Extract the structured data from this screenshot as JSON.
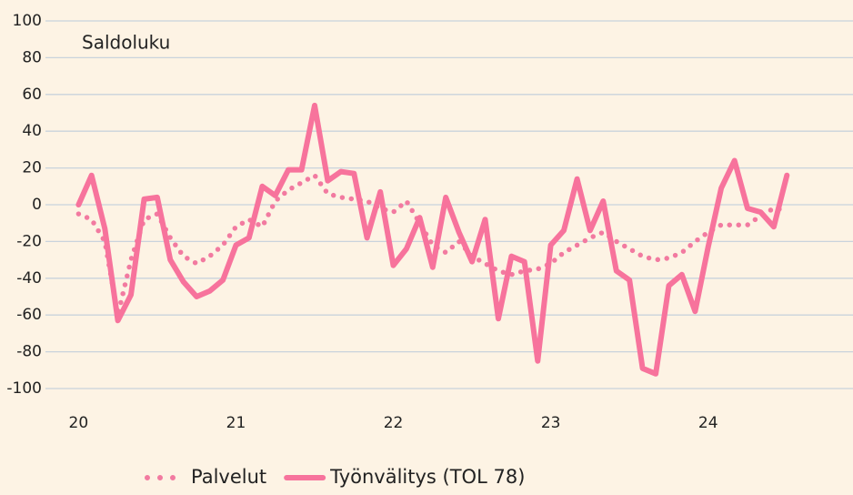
{
  "chart_data": {
    "type": "line",
    "subtitle": "Saldoluku",
    "x": [
      20,
      20.083,
      20.167,
      20.25,
      20.333,
      20.417,
      20.5,
      20.583,
      20.667,
      20.75,
      20.833,
      20.917,
      21,
      21.083,
      21.167,
      21.25,
      21.333,
      21.417,
      21.5,
      21.583,
      21.667,
      21.75,
      21.833,
      21.917,
      22,
      22.083,
      22.167,
      22.25,
      22.333,
      22.417,
      22.5,
      22.583,
      22.667,
      22.75,
      22.833,
      22.917,
      23,
      23.083,
      23.167,
      23.25,
      23.333,
      23.417,
      23.5,
      23.583,
      23.667,
      23.75,
      23.833,
      23.917,
      24,
      24.083,
      24.167,
      24.25,
      24.333,
      24.417,
      24.5
    ],
    "series": [
      {
        "name": "Palvelut",
        "color": "#f27aa0",
        "style": "dotted",
        "values": [
          -5,
          -8,
          -20,
          -60,
          -30,
          -8,
          -5,
          -18,
          -28,
          -32,
          -28,
          -22,
          -12,
          -8,
          -12,
          2,
          8,
          12,
          16,
          6,
          4,
          3,
          2,
          -2,
          -4,
          2,
          -10,
          -22,
          -26,
          -20,
          -28,
          -32,
          -36,
          -38,
          -36,
          -35,
          -32,
          -26,
          -22,
          -18,
          -15,
          -20,
          -24,
          -28,
          -30,
          -29,
          -26,
          -20,
          -15,
          -11,
          -11,
          -11,
          -6,
          -2,
          -3
        ]
      },
      {
        "name": "Työnvälitys (TOL 78)",
        "color": "#f7739c",
        "style": "solid",
        "values": [
          0,
          16,
          -13,
          -63,
          -49,
          3,
          4,
          -30,
          -42,
          -50,
          -47,
          -41,
          -22,
          -18,
          10,
          5,
          19,
          19,
          54,
          13,
          18,
          17,
          -18,
          7,
          -33,
          -24,
          -7,
          -34,
          4,
          -15,
          -31,
          -8,
          -62,
          -28,
          -31,
          -85,
          -22,
          -14,
          14,
          -14,
          2,
          -36,
          -41,
          -89,
          -92,
          -44,
          -38,
          -58,
          -23,
          9,
          24,
          -2,
          -4,
          -12,
          16
        ]
      }
    ],
    "xlim": [
      19.79,
      24.92
    ],
    "xticks": [
      20,
      21,
      22,
      23,
      24
    ],
    "ylim": [
      -100,
      100
    ],
    "yticks": [
      -100,
      -80,
      -60,
      -40,
      -20,
      0,
      20,
      40,
      60,
      80,
      100
    ],
    "grid": true
  }
}
